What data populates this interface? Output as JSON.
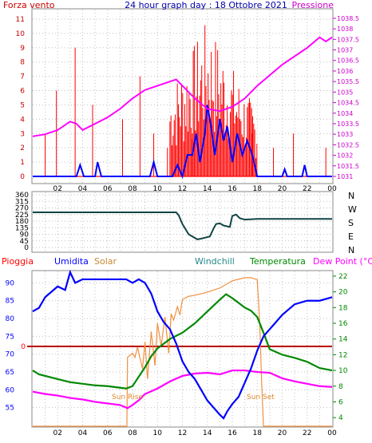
{
  "chart_data": [
    {
      "type": "line",
      "title": "24 hour graph day : 18 Ottobre 2021",
      "left_label": "Forza vento",
      "right_label": "Pressione",
      "x_tick_labels": [
        "02",
        "04",
        "06",
        "08",
        "10",
        "12",
        "14",
        "16",
        "18",
        "20",
        "22",
        "00"
      ],
      "y_left_ticks": [
        0,
        1,
        2,
        3,
        4,
        5,
        6,
        7,
        8,
        9,
        10,
        11
      ],
      "y_left_range": [
        0,
        11.5
      ],
      "y_right_ticks": [
        "1031",
        "1031.5",
        "1032",
        "1032.5",
        "1033",
        "1033.5",
        "1034",
        "1034.5",
        "1035",
        "1035.5",
        "1036",
        "1036.5",
        "1037",
        "1037.5",
        "1038",
        "1038.5"
      ],
      "y_right_range": [
        1031,
        1038.8
      ],
      "grid": true,
      "colors": {
        "gust": "#ff0000",
        "wind": "#0000ff",
        "pressure": "#ff00ff",
        "frame": "#888888",
        "grid": "#c0c0c0"
      },
      "series": [
        {
          "name": "Pressione",
          "axis": "right",
          "x": [
            0,
            1,
            2,
            3,
            3.5,
            4,
            5,
            6,
            7,
            8,
            9,
            10,
            11,
            11.5,
            12,
            13,
            14,
            15,
            16,
            17,
            18,
            19,
            20,
            21,
            22,
            23,
            23.5,
            24
          ],
          "values": [
            1032.9,
            1033.0,
            1033.2,
            1033.6,
            1033.5,
            1033.2,
            1033.5,
            1033.8,
            1034.2,
            1034.7,
            1035.1,
            1035.3,
            1035.5,
            1035.6,
            1035.3,
            1034.7,
            1034.2,
            1034.1,
            1034.3,
            1034.7,
            1035.3,
            1035.8,
            1036.3,
            1036.7,
            1037.1,
            1037.6,
            1037.4,
            1037.6
          ]
        }
      ]
    },
    {
      "type": "line",
      "ylabels_right": [
        "N",
        "W",
        "S",
        "E",
        "N"
      ],
      "y_ticks": [
        0,
        45,
        90,
        135,
        180,
        225,
        270,
        315,
        360
      ],
      "y_range": [
        0,
        360
      ],
      "series": [
        {
          "name": "direzione",
          "x": [
            0,
            11.5,
            11.7,
            12,
            12.5,
            13.2,
            13.5,
            14.2,
            14.5,
            14.7,
            15,
            15.3,
            15.8,
            16,
            16.3,
            16.6,
            17,
            18,
            20,
            22,
            24
          ],
          "values": [
            240,
            240,
            220,
            160,
            90,
            55,
            60,
            75,
            130,
            160,
            165,
            150,
            140,
            215,
            225,
            200,
            190,
            195,
            195,
            195,
            195
          ]
        }
      ]
    },
    {
      "type": "line",
      "labels": [
        "Pioggia",
        "Umidita",
        "Solar",
        "Windchill",
        "Temperatura",
        "Dew Point (°C)"
      ],
      "rain_axis_tick": "0",
      "y_left_ticks": [
        55,
        60,
        65,
        70,
        75,
        80,
        85,
        90
      ],
      "y_left_range": [
        50,
        93
      ],
      "y_right_ticks": [
        4,
        6,
        8,
        10,
        12,
        14,
        16,
        18,
        20,
        22
      ],
      "y_right_range": [
        3,
        22.5
      ],
      "annotations": [
        "Sun Rise",
        "Sun Set"
      ],
      "sunrise_x": 7.6,
      "sunset_x": 18.4,
      "series": [
        {
          "name": "Umidita",
          "axis": "left",
          "x": [
            0,
            0.5,
            1,
            2,
            2.6,
            3,
            3.4,
            4,
            5,
            6,
            7,
            7.5,
            8,
            8.5,
            9,
            9.5,
            10,
            10.5,
            11,
            11.5,
            12,
            12.5,
            13,
            13.5,
            14,
            14.5,
            15,
            15.3,
            15.6,
            16,
            16.5,
            17,
            17.5,
            18,
            18.5,
            19,
            19.5,
            20,
            21,
            22,
            23,
            24
          ],
          "values": [
            82,
            83,
            86,
            89,
            88,
            93,
            90,
            91,
            91,
            91,
            91,
            91,
            90,
            91,
            90,
            87,
            82,
            79,
            77,
            73,
            68,
            65,
            63,
            60,
            57,
            55,
            53,
            52,
            54,
            56,
            58,
            62,
            66,
            71,
            75,
            77,
            79,
            81,
            84,
            85,
            85,
            86
          ]
        },
        {
          "name": "Temperatura",
          "axis": "right",
          "x": [
            0,
            0.5,
            1,
            2,
            3,
            4,
            5,
            6,
            7,
            7.5,
            8,
            8.5,
            9,
            9.5,
            10,
            11,
            12,
            13,
            14,
            15,
            15.5,
            16,
            17,
            17.5,
            18,
            18.5,
            19,
            20,
            21,
            22,
            23,
            24
          ],
          "values": [
            10,
            9.5,
            9.3,
            8.9,
            8.5,
            8.3,
            8.1,
            8.0,
            7.8,
            7.7,
            8.0,
            9.2,
            10.4,
            11.8,
            12.8,
            14.0,
            14.8,
            16.0,
            17.5,
            19.0,
            19.7,
            19.2,
            18.0,
            17.6,
            16.8,
            14.8,
            12.7,
            12.0,
            11.6,
            11.1,
            10.3,
            10.0
          ]
        },
        {
          "name": "Dew Point",
          "axis": "right",
          "x": [
            0,
            1,
            2,
            3,
            4,
            5,
            6,
            7,
            7.6,
            8,
            8.5,
            9,
            10,
            11,
            12,
            13,
            14,
            15,
            16,
            17,
            18,
            19,
            20,
            21,
            22,
            23,
            24
          ],
          "values": [
            7.3,
            7.0,
            6.8,
            6.5,
            6.3,
            6.0,
            5.8,
            5.6,
            5.2,
            5.6,
            6.2,
            7.0,
            7.7,
            8.6,
            9.3,
            9.6,
            9.7,
            9.5,
            10.0,
            10.0,
            9.8,
            9.7,
            9.0,
            8.6,
            8.3,
            8.0,
            7.9
          ]
        },
        {
          "name": "Solar",
          "axis": "solar",
          "x": [
            0,
            7.55,
            7.6,
            8,
            8.2,
            8.4,
            8.8,
            9,
            9.2,
            9.5,
            9.8,
            10,
            10.3,
            10.6,
            10.9,
            11.1,
            11.3,
            11.6,
            11.8,
            12,
            12.5,
            13,
            14,
            15,
            16,
            17,
            17.5,
            18,
            18.2,
            18.35,
            18.5,
            24
          ],
          "values": [
            0,
            0,
            430,
            470,
            430,
            530,
            320,
            580,
            220,
            680,
            350,
            760,
            540,
            820,
            470,
            850,
            790,
            920,
            840,
            990,
            1020,
            1030,
            1060,
            1100,
            1170,
            1200,
            1200,
            1180,
            760,
            200,
            0,
            0
          ]
        }
      ]
    }
  ]
}
